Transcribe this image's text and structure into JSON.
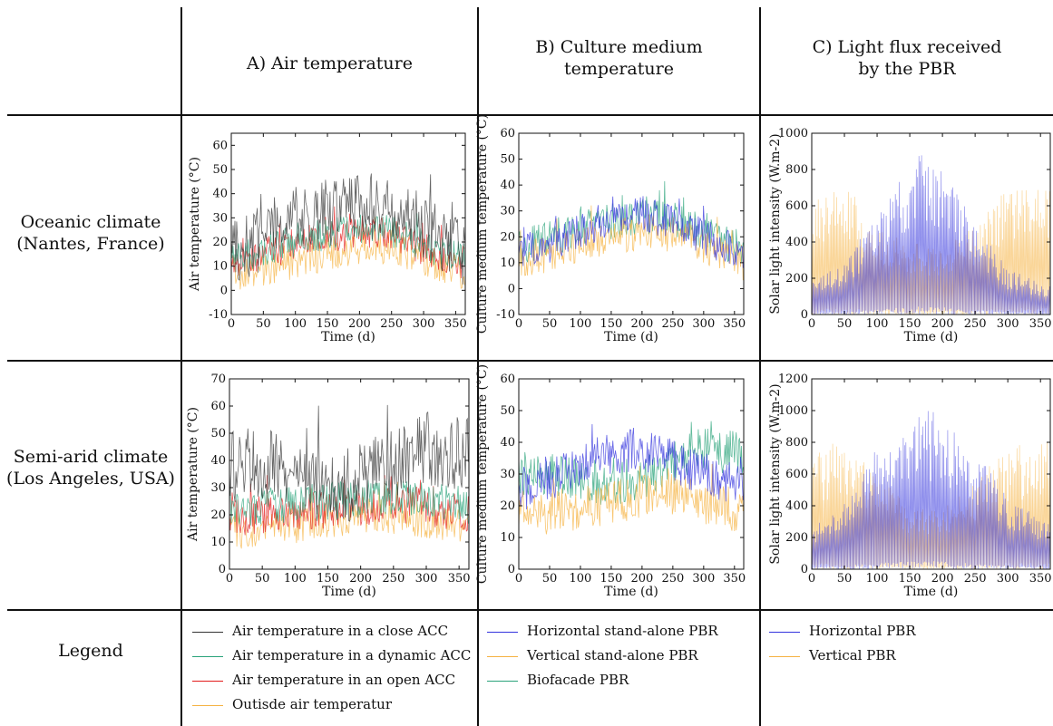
{
  "headers": {
    "col_a": "A) Air temperature",
    "col_b_1": "B) Culture medium",
    "col_b_2": "temperature",
    "col_c_1": "C) Light flux received",
    "col_c_2": "by the PBR"
  },
  "rows": {
    "oceanic_1": "Oceanic climate",
    "oceanic_2": "(Nantes, France)",
    "semiarid_1": "Semi-arid climate",
    "semiarid_2": "(Los Angeles, USA)",
    "legend": "Legend"
  },
  "legend": {
    "a": [
      {
        "label": "Air temperature in a close ACC",
        "color": "#333333"
      },
      {
        "label": "Air temperature in a dynamic ACC",
        "color": "#2aa37a"
      },
      {
        "label": "Air temperature in an open ACC",
        "color": "#e21b1b"
      },
      {
        "label": "Outisde air temperatur",
        "color": "#f5b342"
      }
    ],
    "b": [
      {
        "label": "Horizontal stand-alone PBR",
        "color": "#3333dd"
      },
      {
        "label": "Vertical stand-alone PBR",
        "color": "#f5b342"
      },
      {
        "label": "Biofacade PBR",
        "color": "#2aa37a"
      }
    ],
    "c": [
      {
        "label": "Horizontal PBR",
        "color": "#3333dd"
      },
      {
        "label": "Vertical PBR",
        "color": "#f5b342"
      }
    ]
  },
  "chart_data": [
    {
      "id": "a_oceanic",
      "type": "line",
      "climate": "Oceanic climate (Nantes, France)",
      "xlabel": "Time (d)",
      "ylabel": "Air temperature (°C)",
      "xlim": [
        0,
        365
      ],
      "ylim": [
        -10,
        65
      ],
      "xticks": [
        "0",
        "50",
        "100",
        "150",
        "200",
        "250",
        "300",
        "350"
      ],
      "yticks": [
        "-10",
        "0",
        "10",
        "20",
        "30",
        "40",
        "50",
        "60"
      ],
      "series": [
        {
          "name": "Air temperature in a close ACC",
          "color": "#333333",
          "x": [
            0,
            50,
            100,
            150,
            200,
            250,
            300,
            365
          ],
          "y": [
            15,
            22,
            30,
            32,
            35,
            34,
            26,
            15
          ]
        },
        {
          "name": "Air temperature in a dynamic ACC",
          "color": "#2aa37a",
          "x": [
            0,
            50,
            100,
            150,
            200,
            250,
            300,
            365
          ],
          "y": [
            13,
            17,
            21,
            23,
            25,
            24,
            19,
            13
          ]
        },
        {
          "name": "Air temperature in an open ACC",
          "color": "#e21b1b",
          "x": [
            0,
            50,
            100,
            150,
            200,
            250,
            300,
            365
          ],
          "y": [
            12,
            15,
            19,
            22,
            24,
            23,
            17,
            11
          ]
        },
        {
          "name": "Outisde air temperatur",
          "color": "#f5b342",
          "x": [
            0,
            50,
            100,
            150,
            200,
            250,
            300,
            365
          ],
          "y": [
            7,
            8,
            12,
            15,
            18,
            18,
            13,
            7
          ]
        }
      ]
    },
    {
      "id": "b_oceanic",
      "type": "line",
      "climate": "Oceanic climate (Nantes, France)",
      "xlabel": "Time (d)",
      "ylabel": "Culture medium temperature (°C)",
      "xlim": [
        0,
        365
      ],
      "ylim": [
        -10,
        60
      ],
      "xticks": [
        "0",
        "50",
        "100",
        "150",
        "200",
        "250",
        "300",
        "350"
      ],
      "yticks": [
        "-10",
        "0",
        "10",
        "20",
        "30",
        "40",
        "50",
        "60"
      ],
      "series": [
        {
          "name": "Horizontal stand-alone PBR",
          "color": "#3333dd",
          "x": [
            0,
            50,
            100,
            150,
            200,
            250,
            300,
            365
          ],
          "y": [
            14,
            17,
            22,
            27,
            29,
            26,
            20,
            13
          ]
        },
        {
          "name": "Vertical stand-alone PBR",
          "color": "#f5b342",
          "x": [
            0,
            50,
            100,
            150,
            200,
            250,
            300,
            365
          ],
          "y": [
            11,
            13,
            17,
            20,
            22,
            21,
            16,
            10
          ]
        },
        {
          "name": "Biofacade PBR",
          "color": "#2aa37a",
          "x": [
            0,
            50,
            100,
            150,
            200,
            250,
            300,
            365
          ],
          "y": [
            16,
            19,
            23,
            26,
            28,
            27,
            21,
            15
          ]
        }
      ]
    },
    {
      "id": "c_oceanic",
      "type": "line",
      "climate": "Oceanic climate (Nantes, France)",
      "xlabel": "Time (d)",
      "ylabel": "Solar light intensity (W.m-2)",
      "xlim": [
        0,
        365
      ],
      "ylim": [
        0,
        1000
      ],
      "xticks": [
        "0",
        "50",
        "100",
        "150",
        "200",
        "250",
        "300",
        "350"
      ],
      "yticks": [
        "0",
        "200",
        "400",
        "600",
        "800",
        "1000"
      ],
      "series": [
        {
          "name": "Horizontal PBR",
          "color": "#3333dd",
          "x": [
            0,
            50,
            100,
            150,
            170,
            200,
            250,
            300,
            365
          ],
          "y": [
            180,
            300,
            550,
            820,
            900,
            820,
            500,
            250,
            160
          ]
        },
        {
          "name": "Vertical PBR",
          "color": "#f5b342",
          "x": [
            0,
            50,
            100,
            150,
            200,
            250,
            300,
            365
          ],
          "y": [
            700,
            720,
            520,
            400,
            380,
            500,
            700,
            720
          ]
        }
      ]
    },
    {
      "id": "a_semiarid",
      "type": "line",
      "climate": "Semi-arid climate (Los Angeles, USA)",
      "xlabel": "Time (d)",
      "ylabel": "Air temperature (°C)",
      "xlim": [
        0,
        365
      ],
      "ylim": [
        0,
        70
      ],
      "xticks": [
        "0",
        "50",
        "100",
        "150",
        "200",
        "250",
        "300",
        "350"
      ],
      "yticks": [
        "0",
        "10",
        "20",
        "30",
        "40",
        "50",
        "60",
        "70"
      ],
      "series": [
        {
          "name": "Air temperature in a close ACC",
          "color": "#333333",
          "x": [
            0,
            50,
            100,
            150,
            200,
            250,
            300,
            365
          ],
          "y": [
            38,
            40,
            32,
            30,
            32,
            38,
            45,
            42
          ]
        },
        {
          "name": "Air temperature in a dynamic ACC",
          "color": "#2aa37a",
          "x": [
            0,
            50,
            100,
            150,
            200,
            250,
            300,
            365
          ],
          "y": [
            22,
            23,
            24,
            25,
            26,
            27,
            26,
            23
          ]
        },
        {
          "name": "Air temperature in an open ACC",
          "color": "#e21b1b",
          "x": [
            0,
            50,
            100,
            150,
            200,
            250,
            300,
            365
          ],
          "y": [
            19,
            20,
            21,
            22,
            23,
            24,
            23,
            20
          ]
        },
        {
          "name": "Outisde air temperatur",
          "color": "#f5b342",
          "x": [
            0,
            50,
            100,
            150,
            200,
            250,
            300,
            365
          ],
          "y": [
            14,
            15,
            16,
            18,
            20,
            20,
            18,
            14
          ]
        }
      ]
    },
    {
      "id": "b_semiarid",
      "type": "line",
      "climate": "Semi-arid climate (Los Angeles, USA)",
      "xlabel": "Time (d)",
      "ylabel": "Culture medium temperature (°C)",
      "xlim": [
        0,
        365
      ],
      "ylim": [
        0,
        60
      ],
      "xticks": [
        "0",
        "50",
        "100",
        "150",
        "200",
        "250",
        "300",
        "350"
      ],
      "yticks": [
        "0",
        "10",
        "20",
        "30",
        "40",
        "50",
        "60"
      ],
      "series": [
        {
          "name": "Horizontal stand-alone PBR",
          "color": "#3333dd",
          "x": [
            0,
            50,
            100,
            150,
            200,
            250,
            300,
            365
          ],
          "y": [
            25,
            28,
            32,
            36,
            38,
            34,
            30,
            26
          ]
        },
        {
          "name": "Vertical stand-alone PBR",
          "color": "#f5b342",
          "x": [
            0,
            50,
            100,
            150,
            200,
            250,
            300,
            365
          ],
          "y": [
            17,
            18,
            19,
            21,
            23,
            23,
            21,
            18
          ]
        },
        {
          "name": "Biofacade PBR",
          "color": "#2aa37a",
          "x": [
            0,
            50,
            100,
            150,
            200,
            250,
            300,
            365
          ],
          "y": [
            30,
            30,
            28,
            27,
            29,
            33,
            38,
            36
          ]
        }
      ]
    },
    {
      "id": "c_semiarid",
      "type": "line",
      "climate": "Semi-arid climate (Los Angeles, USA)",
      "xlabel": "Time (d)",
      "ylabel": "Solar light intensity (W.m-2)",
      "xlim": [
        0,
        365
      ],
      "ylim": [
        0,
        1200
      ],
      "xticks": [
        "0",
        "50",
        "100",
        "150",
        "200",
        "250",
        "300",
        "350"
      ],
      "yticks": [
        "0",
        "200",
        "400",
        "600",
        "800",
        "1000",
        "1200"
      ],
      "series": [
        {
          "name": "Horizontal PBR",
          "color": "#3333dd",
          "x": [
            0,
            50,
            100,
            150,
            170,
            200,
            250,
            300,
            365
          ],
          "y": [
            250,
            450,
            800,
            1000,
            1020,
            980,
            750,
            450,
            280
          ]
        },
        {
          "name": "Vertical PBR",
          "color": "#f5b342",
          "x": [
            0,
            50,
            100,
            150,
            200,
            250,
            300,
            365
          ],
          "y": [
            780,
            800,
            600,
            400,
            380,
            550,
            780,
            820
          ]
        }
      ]
    }
  ]
}
